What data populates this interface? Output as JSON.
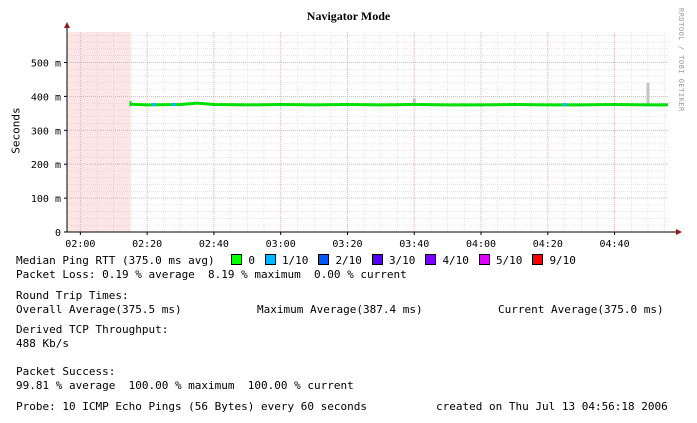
{
  "chart_data": {
    "type": "line",
    "title": "Navigator Mode",
    "ylabel": "Seconds",
    "credit": "RRDTOOL / TOBI OETIKER",
    "x_ticks": [
      "02:00",
      "02:20",
      "02:40",
      "03:00",
      "03:20",
      "03:40",
      "04:00",
      "04:20",
      "04:40"
    ],
    "y_ticks": [
      "0",
      "100 m",
      "200 m",
      "300 m",
      "400 m",
      "500 m"
    ],
    "x_range": [
      "01:56",
      "04:56"
    ],
    "ylim": [
      0,
      0.59
    ],
    "grid": true,
    "no_data_span": [
      "01:56",
      "02:15"
    ],
    "series": [
      {
        "name": "Median Ping RTT",
        "color": "#00e000",
        "x": [
          "02:15",
          "02:20",
          "02:30",
          "02:35",
          "02:40",
          "02:50",
          "03:00",
          "03:10",
          "03:20",
          "03:30",
          "03:40",
          "03:50",
          "04:00",
          "04:10",
          "04:20",
          "04:30",
          "04:40",
          "04:50",
          "04:56"
        ],
        "y": [
          0.377,
          0.375,
          0.376,
          0.38,
          0.376,
          0.375,
          0.376,
          0.375,
          0.376,
          0.375,
          0.376,
          0.375,
          0.375,
          0.376,
          0.375,
          0.375,
          0.376,
          0.375,
          0.375
        ]
      }
    ],
    "loss_markers": [
      {
        "x": "02:22",
        "color": "#00bbff"
      },
      {
        "x": "02:28",
        "color": "#00bbff"
      },
      {
        "x": "04:25",
        "color": "#00bbff"
      }
    ],
    "stddev_spikes": [
      {
        "x": "03:40",
        "low": 0.375,
        "high": 0.395
      },
      {
        "x": "04:50",
        "low": 0.375,
        "high": 0.44
      }
    ]
  },
  "legend": {
    "label": "Median Ping RTT (375.0 ms avg)",
    "items": [
      {
        "label": "0",
        "color": "#00ff00"
      },
      {
        "label": "1/10",
        "color": "#00b8ff"
      },
      {
        "label": "2/10",
        "color": "#0059ff"
      },
      {
        "label": "3/10",
        "color": "#5500ff"
      },
      {
        "label": "4/10",
        "color": "#7a00ff"
      },
      {
        "label": "5/10",
        "color": "#dd00ff"
      },
      {
        "label": "9/10",
        "color": "#ff0000"
      }
    ]
  },
  "stats": {
    "packet_loss": "Packet Loss: 0.19 % average  8.19 % maximum  0.00 % current",
    "rtt_heading": "Round Trip Times:",
    "rtt_overall": "Overall Average(375.5 ms)",
    "rtt_max": "Maximum Average(387.4 ms)",
    "rtt_current": "Current Average(375.0 ms)",
    "tcp_heading": "Derived TCP Throughput:",
    "tcp_value": "488 Kb/s",
    "success_heading": "Packet Success:",
    "success_value": "99.81 % average  100.00 % maximum  100.00 % current",
    "probe": "Probe: 10 ICMP Echo Pings (56 Bytes) every 60 seconds",
    "created": "created on Thu Jul 13 04:56:18 2006"
  }
}
